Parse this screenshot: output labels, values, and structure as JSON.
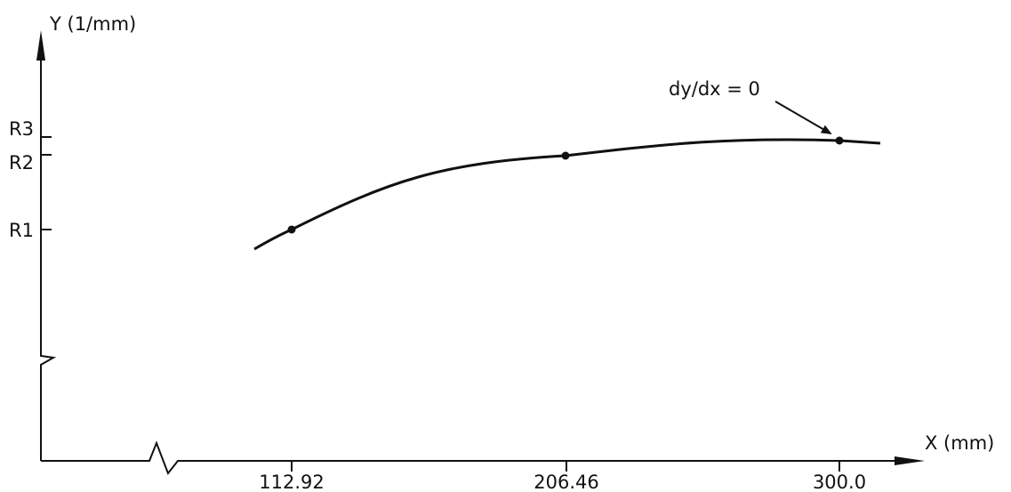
{
  "chart_data": {
    "type": "line",
    "title": "",
    "xlabel": "X (mm)",
    "ylabel": "Y (1/mm)",
    "x_ticks": [
      "112.92",
      "206.46",
      "300.0"
    ],
    "y_ticks": [
      "R1",
      "R2",
      "R3"
    ],
    "axis_breaks": [
      "x",
      "y"
    ],
    "grid": false,
    "series": [
      {
        "points": [
          {
            "x": 112.92,
            "y": "R1"
          },
          {
            "x": 206.46,
            "y": "R2"
          },
          {
            "x": 300.0,
            "y": "R3"
          }
        ]
      }
    ],
    "annotations": [
      {
        "text": "dy/dx = 0",
        "target_x": 300.0
      }
    ],
    "colors": {
      "ink": "#111111",
      "background": "#ffffff"
    }
  }
}
